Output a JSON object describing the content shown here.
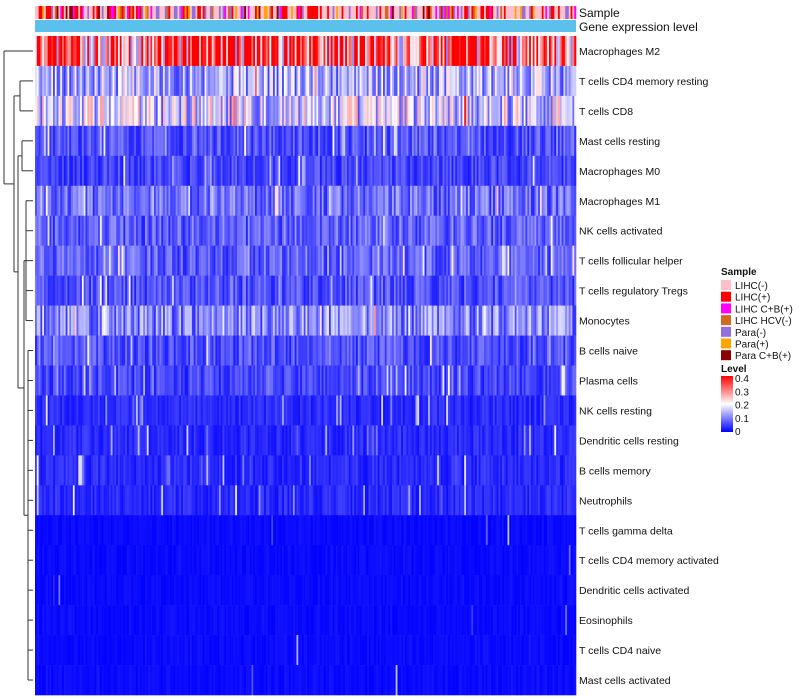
{
  "chart_data": {
    "type": "heatmap",
    "annotation_labels": {
      "sample": "Sample",
      "gene_expression": "Gene expression level"
    },
    "rows": [
      "Macrophages M2",
      "T cells CD4 memory resting",
      "T cells CD8",
      "Mast cells resting",
      "Macrophages M0",
      "Macrophages M1",
      "NK cells activated",
      "T cells follicular helper",
      "T cells regulatory  Tregs",
      "Monocytes",
      "B cells naive",
      "Plasma cells",
      "NK cells resting",
      "Dendritic cells resting",
      "B cells memory",
      "Neutrophils",
      "T cells gamma delta",
      "T cells CD4 memory activated",
      "Dendritic cells activated",
      "Eosinophils",
      "T cells CD4 naive",
      "Mast cells activated"
    ],
    "row_mean_level": [
      0.3,
      0.13,
      0.16,
      0.06,
      0.05,
      0.08,
      0.07,
      0.07,
      0.06,
      0.1,
      0.06,
      0.05,
      0.03,
      0.03,
      0.03,
      0.03,
      0.01,
      0.01,
      0.01,
      0.01,
      0.01,
      0.01
    ],
    "sample_legend": {
      "title": "Sample",
      "items": [
        {
          "label": "LIHC(-)",
          "color": "#ffc0cb"
        },
        {
          "label": "LIHC(+)",
          "color": "#ff0000"
        },
        {
          "label": "LIHC C+B(+)",
          "color": "#ff00ff"
        },
        {
          "label": "LIHC HCV(-)",
          "color": "#d2691e"
        },
        {
          "label": "Para(-)",
          "color": "#9370db"
        },
        {
          "label": "Para(+)",
          "color": "#ffa500"
        },
        {
          "label": "Para C+B(+)",
          "color": "#8b0000"
        }
      ]
    },
    "level_legend": {
      "title": "Level",
      "min": 0,
      "max": 0.4,
      "ticks": [
        "0.4",
        "0.3",
        "0.2",
        "0.1",
        "0"
      ],
      "colors": {
        "low": "#0000ff",
        "mid": "#ffffff",
        "high": "#ff0000"
      }
    },
    "gene_expression_color": "#5bc0eb"
  }
}
